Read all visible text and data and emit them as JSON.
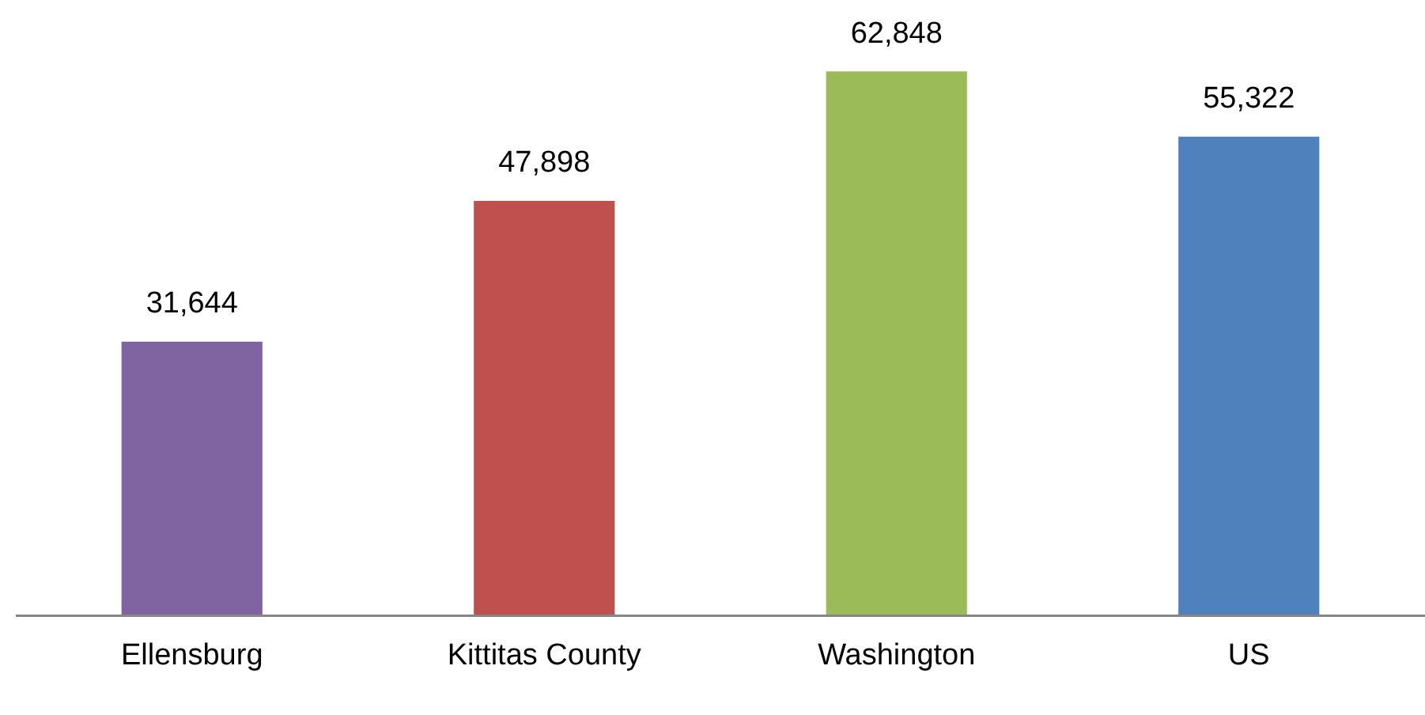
{
  "chart_data": {
    "type": "bar",
    "categories": [
      "Ellensburg",
      "Kittitas County",
      "Washington",
      "US"
    ],
    "values": [
      31644,
      47898,
      62848,
      55322
    ],
    "colors": [
      "#8064a2",
      "#c0504d",
      "#9bbb59",
      "#4f81bd"
    ],
    "value_labels": [
      "31,644",
      "47,898",
      "62,848",
      "55,322"
    ],
    "grid": false,
    "legend": false
  }
}
